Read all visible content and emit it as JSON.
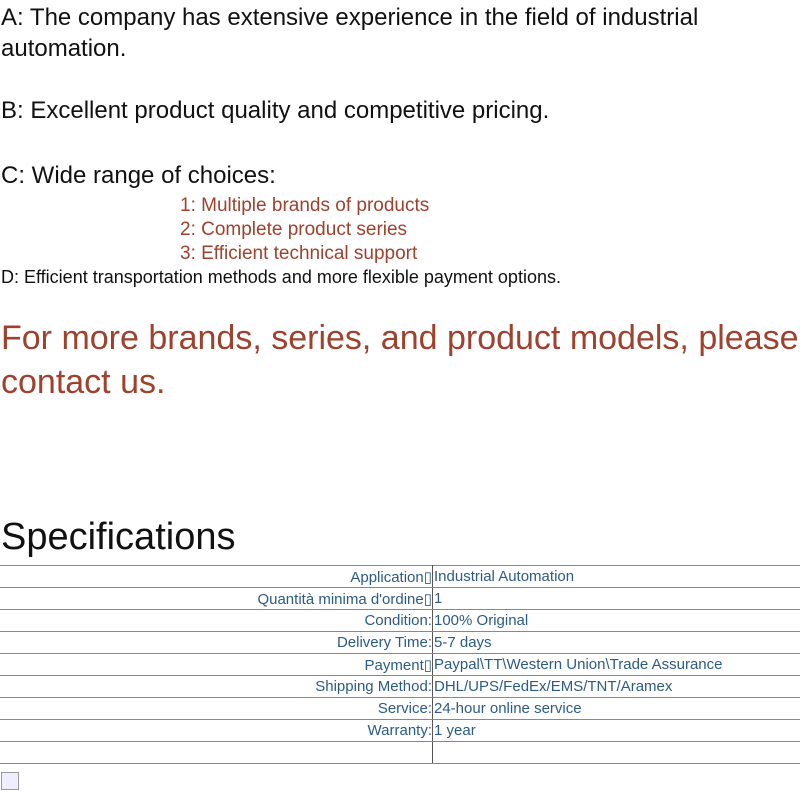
{
  "points": {
    "a": "A: The company has extensive experience in the field of industrial automation.",
    "b": "B: Excellent product quality and competitive pricing.",
    "c": "C: Wide range of choices:",
    "c_items": [
      "1: Multiple brands of products",
      "2: Complete product series",
      "3: Efficient technical support"
    ],
    "d": "D: Efficient transportation methods and more flexible payment options."
  },
  "contact": "For more brands, series, and product models, please contact us.",
  "specs": {
    "title": "Specifications",
    "rows": [
      {
        "k": "Application▯",
        "v": "Industrial Automation"
      },
      {
        "k": "Quantità minima d'ordine▯",
        "v": "1"
      },
      {
        "k": "Condition:",
        "v": "100% Original"
      },
      {
        "k": "Delivery Time:",
        "v": "5-7 days"
      },
      {
        "k": "Payment▯",
        "v": "Paypal\\TT\\Western Union\\Trade Assurance"
      },
      {
        "k": "Shipping Method:",
        "v": "DHL/UPS/FedEx/EMS/TNT/Aramex"
      },
      {
        "k": "Service:",
        "v": "24-hour online service"
      },
      {
        "k": "Warranty:",
        "v": "1 year"
      },
      {
        "k": "",
        "v": ""
      }
    ]
  },
  "colors": {
    "accent": "#a0412d",
    "table_text": "#2c5b86"
  }
}
